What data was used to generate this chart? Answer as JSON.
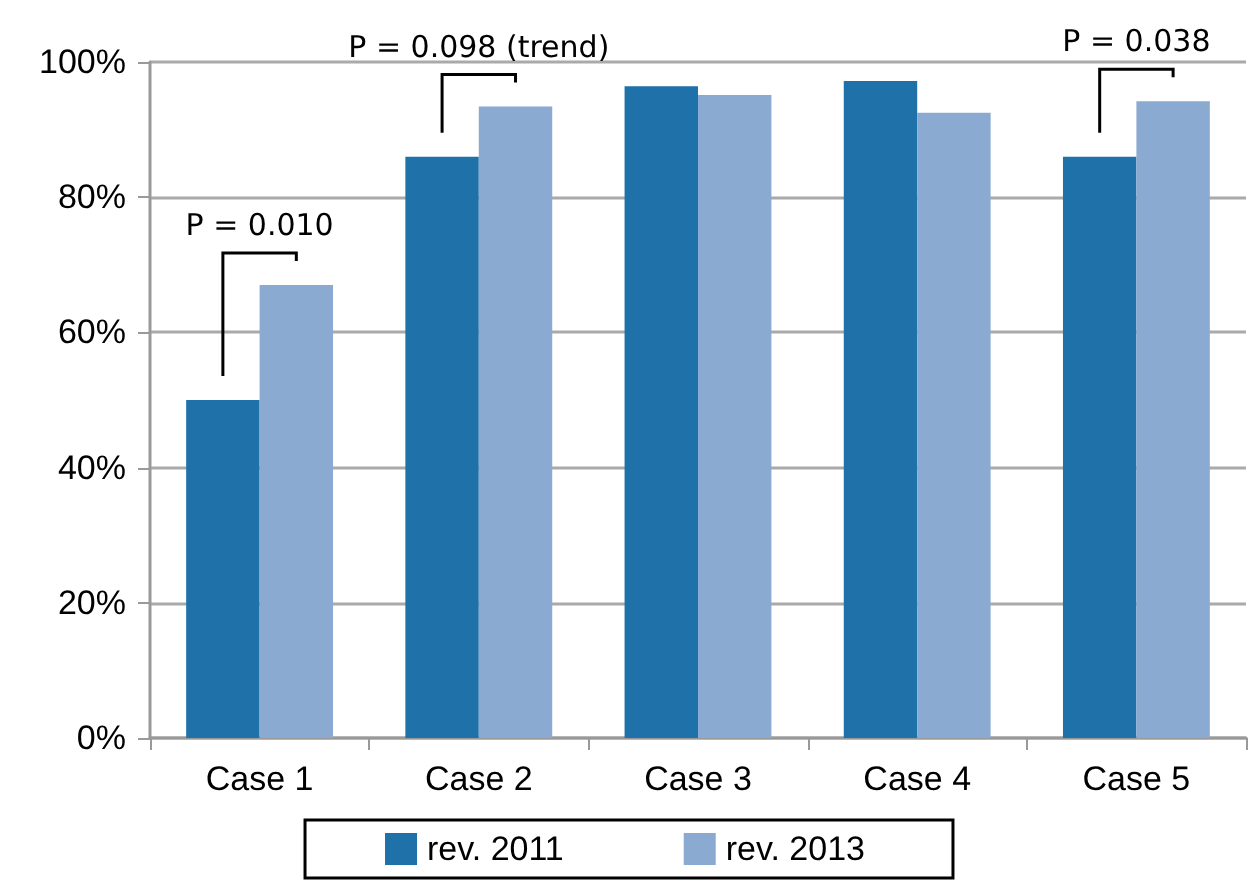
{
  "chart_data": {
    "type": "bar",
    "categories": [
      "Case 1",
      "Case 2",
      "Case 3",
      "Case 4",
      "Case 5"
    ],
    "series": [
      {
        "name": "rev. 2011",
        "color": "#1f71a9",
        "values": [
          50,
          86,
          96.4,
          97.2,
          86
        ]
      },
      {
        "name": "rev. 2013",
        "color": "#8aaad2",
        "values": [
          67,
          93.4,
          95.1,
          92.5,
          94.2
        ]
      }
    ],
    "ylim": [
      0,
      100
    ],
    "yticks": [
      {
        "value": 0,
        "label": "0%"
      },
      {
        "value": 20,
        "label": "20%"
      },
      {
        "value": 40,
        "label": "40%"
      },
      {
        "value": 60,
        "label": "60%"
      },
      {
        "value": 80,
        "label": "80%"
      },
      {
        "value": 100,
        "label": "100%"
      }
    ],
    "grid": "y",
    "legend": "bottom",
    "annotations": [
      "P = 0.010",
      "P = 0.098 (trend)",
      "P = 0.038"
    ]
  }
}
